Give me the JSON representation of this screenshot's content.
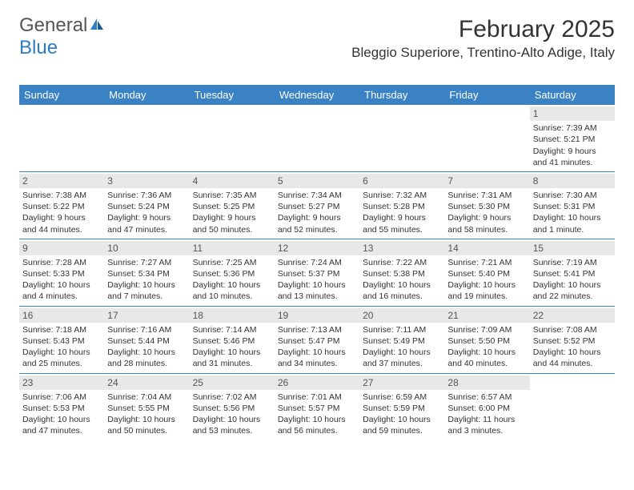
{
  "logo": {
    "text1": "General",
    "text2": "Blue"
  },
  "title": "February 2025",
  "location": "Bleggio Superiore, Trentino-Alto Adige, Italy",
  "colors": {
    "header_bg": "#3a82c4",
    "header_text": "#ffffff",
    "daynum_bg": "#e8e8e8",
    "border": "#3a82c4",
    "text": "#333333",
    "logo_gray": "#555555",
    "logo_blue": "#2f7bc4",
    "background": "#ffffff"
  },
  "typography": {
    "title_fontsize": 30,
    "location_fontsize": 17,
    "dayheader_fontsize": 13,
    "cell_fontsize": 10.5,
    "daynum_fontsize": 12
  },
  "day_names": [
    "Sunday",
    "Monday",
    "Tuesday",
    "Wednesday",
    "Thursday",
    "Friday",
    "Saturday"
  ],
  "weeks": [
    [
      null,
      null,
      null,
      null,
      null,
      null,
      {
        "n": "1",
        "sunrise": "Sunrise: 7:39 AM",
        "sunset": "Sunset: 5:21 PM",
        "daylight1": "Daylight: 9 hours",
        "daylight2": "and 41 minutes."
      }
    ],
    [
      {
        "n": "2",
        "sunrise": "Sunrise: 7:38 AM",
        "sunset": "Sunset: 5:22 PM",
        "daylight1": "Daylight: 9 hours",
        "daylight2": "and 44 minutes."
      },
      {
        "n": "3",
        "sunrise": "Sunrise: 7:36 AM",
        "sunset": "Sunset: 5:24 PM",
        "daylight1": "Daylight: 9 hours",
        "daylight2": "and 47 minutes."
      },
      {
        "n": "4",
        "sunrise": "Sunrise: 7:35 AM",
        "sunset": "Sunset: 5:25 PM",
        "daylight1": "Daylight: 9 hours",
        "daylight2": "and 50 minutes."
      },
      {
        "n": "5",
        "sunrise": "Sunrise: 7:34 AM",
        "sunset": "Sunset: 5:27 PM",
        "daylight1": "Daylight: 9 hours",
        "daylight2": "and 52 minutes."
      },
      {
        "n": "6",
        "sunrise": "Sunrise: 7:32 AM",
        "sunset": "Sunset: 5:28 PM",
        "daylight1": "Daylight: 9 hours",
        "daylight2": "and 55 minutes."
      },
      {
        "n": "7",
        "sunrise": "Sunrise: 7:31 AM",
        "sunset": "Sunset: 5:30 PM",
        "daylight1": "Daylight: 9 hours",
        "daylight2": "and 58 minutes."
      },
      {
        "n": "8",
        "sunrise": "Sunrise: 7:30 AM",
        "sunset": "Sunset: 5:31 PM",
        "daylight1": "Daylight: 10 hours",
        "daylight2": "and 1 minute."
      }
    ],
    [
      {
        "n": "9",
        "sunrise": "Sunrise: 7:28 AM",
        "sunset": "Sunset: 5:33 PM",
        "daylight1": "Daylight: 10 hours",
        "daylight2": "and 4 minutes."
      },
      {
        "n": "10",
        "sunrise": "Sunrise: 7:27 AM",
        "sunset": "Sunset: 5:34 PM",
        "daylight1": "Daylight: 10 hours",
        "daylight2": "and 7 minutes."
      },
      {
        "n": "11",
        "sunrise": "Sunrise: 7:25 AM",
        "sunset": "Sunset: 5:36 PM",
        "daylight1": "Daylight: 10 hours",
        "daylight2": "and 10 minutes."
      },
      {
        "n": "12",
        "sunrise": "Sunrise: 7:24 AM",
        "sunset": "Sunset: 5:37 PM",
        "daylight1": "Daylight: 10 hours",
        "daylight2": "and 13 minutes."
      },
      {
        "n": "13",
        "sunrise": "Sunrise: 7:22 AM",
        "sunset": "Sunset: 5:38 PM",
        "daylight1": "Daylight: 10 hours",
        "daylight2": "and 16 minutes."
      },
      {
        "n": "14",
        "sunrise": "Sunrise: 7:21 AM",
        "sunset": "Sunset: 5:40 PM",
        "daylight1": "Daylight: 10 hours",
        "daylight2": "and 19 minutes."
      },
      {
        "n": "15",
        "sunrise": "Sunrise: 7:19 AM",
        "sunset": "Sunset: 5:41 PM",
        "daylight1": "Daylight: 10 hours",
        "daylight2": "and 22 minutes."
      }
    ],
    [
      {
        "n": "16",
        "sunrise": "Sunrise: 7:18 AM",
        "sunset": "Sunset: 5:43 PM",
        "daylight1": "Daylight: 10 hours",
        "daylight2": "and 25 minutes."
      },
      {
        "n": "17",
        "sunrise": "Sunrise: 7:16 AM",
        "sunset": "Sunset: 5:44 PM",
        "daylight1": "Daylight: 10 hours",
        "daylight2": "and 28 minutes."
      },
      {
        "n": "18",
        "sunrise": "Sunrise: 7:14 AM",
        "sunset": "Sunset: 5:46 PM",
        "daylight1": "Daylight: 10 hours",
        "daylight2": "and 31 minutes."
      },
      {
        "n": "19",
        "sunrise": "Sunrise: 7:13 AM",
        "sunset": "Sunset: 5:47 PM",
        "daylight1": "Daylight: 10 hours",
        "daylight2": "and 34 minutes."
      },
      {
        "n": "20",
        "sunrise": "Sunrise: 7:11 AM",
        "sunset": "Sunset: 5:49 PM",
        "daylight1": "Daylight: 10 hours",
        "daylight2": "and 37 minutes."
      },
      {
        "n": "21",
        "sunrise": "Sunrise: 7:09 AM",
        "sunset": "Sunset: 5:50 PM",
        "daylight1": "Daylight: 10 hours",
        "daylight2": "and 40 minutes."
      },
      {
        "n": "22",
        "sunrise": "Sunrise: 7:08 AM",
        "sunset": "Sunset: 5:52 PM",
        "daylight1": "Daylight: 10 hours",
        "daylight2": "and 44 minutes."
      }
    ],
    [
      {
        "n": "23",
        "sunrise": "Sunrise: 7:06 AM",
        "sunset": "Sunset: 5:53 PM",
        "daylight1": "Daylight: 10 hours",
        "daylight2": "and 47 minutes."
      },
      {
        "n": "24",
        "sunrise": "Sunrise: 7:04 AM",
        "sunset": "Sunset: 5:55 PM",
        "daylight1": "Daylight: 10 hours",
        "daylight2": "and 50 minutes."
      },
      {
        "n": "25",
        "sunrise": "Sunrise: 7:02 AM",
        "sunset": "Sunset: 5:56 PM",
        "daylight1": "Daylight: 10 hours",
        "daylight2": "and 53 minutes."
      },
      {
        "n": "26",
        "sunrise": "Sunrise: 7:01 AM",
        "sunset": "Sunset: 5:57 PM",
        "daylight1": "Daylight: 10 hours",
        "daylight2": "and 56 minutes."
      },
      {
        "n": "27",
        "sunrise": "Sunrise: 6:59 AM",
        "sunset": "Sunset: 5:59 PM",
        "daylight1": "Daylight: 10 hours",
        "daylight2": "and 59 minutes."
      },
      {
        "n": "28",
        "sunrise": "Sunrise: 6:57 AM",
        "sunset": "Sunset: 6:00 PM",
        "daylight1": "Daylight: 11 hours",
        "daylight2": "and 3 minutes."
      },
      null
    ]
  ]
}
